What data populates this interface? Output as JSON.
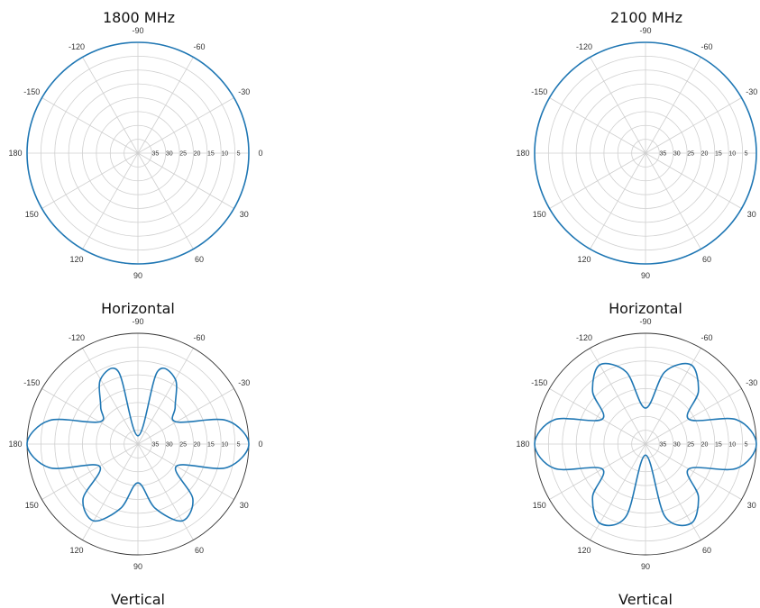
{
  "headers": [
    "1800 MHz",
    "2100 MHz"
  ],
  "captions": [
    "Horizontal",
    "Vertical"
  ],
  "colors": {
    "pattern": "#1f77b4",
    "grid": "#cfcfcf",
    "rim": "#333333"
  },
  "polar_axes": {
    "theta_labels": [
      "-90",
      "-60",
      "-30",
      "0",
      "30",
      "60",
      "90",
      "120",
      "150",
      "180",
      "-150",
      "-120"
    ],
    "radial_labels": [
      "35",
      "30",
      "25",
      "20",
      "15",
      "10",
      "5"
    ],
    "rlim": [
      0,
      40
    ]
  },
  "chart_data": [
    {
      "type": "polar",
      "title": "1800 MHz",
      "caption": "Horizontal",
      "theta_deg": [
        0,
        90,
        180,
        270
      ],
      "r": [
        40,
        40,
        40,
        40
      ],
      "shape": "omnidirectional"
    },
    {
      "type": "polar",
      "title": "2100 MHz",
      "caption": "Horizontal",
      "theta_deg": [
        0,
        90,
        180,
        270
      ],
      "r": [
        40,
        40,
        40,
        40
      ],
      "shape": "omnidirectional"
    },
    {
      "type": "polar",
      "title": "1800 MHz",
      "caption": "Vertical",
      "theta_deg": [
        0,
        15,
        30,
        45,
        60,
        75,
        90,
        105,
        120,
        135,
        150,
        165,
        180,
        195,
        210,
        225,
        240,
        255,
        270,
        285,
        300,
        315,
        330,
        345
      ],
      "r": [
        40,
        33,
        16,
        28,
        32,
        24,
        14,
        24,
        32,
        28,
        16,
        33,
        40,
        33,
        16,
        19,
        27,
        27,
        3,
        27,
        27,
        19,
        16,
        33
      ]
    },
    {
      "type": "polar",
      "title": "2100 MHz",
      "caption": "Vertical",
      "theta_deg": [
        0,
        15,
        30,
        45,
        60,
        75,
        90,
        105,
        120,
        135,
        150,
        165,
        180,
        195,
        210,
        225,
        240,
        255,
        270,
        285,
        300,
        315,
        330,
        345
      ],
      "r": [
        40,
        34,
        18,
        27,
        33,
        27,
        4,
        27,
        33,
        27,
        18,
        34,
        40,
        34,
        18,
        27,
        33,
        27,
        13,
        27,
        33,
        27,
        18,
        34
      ]
    }
  ]
}
